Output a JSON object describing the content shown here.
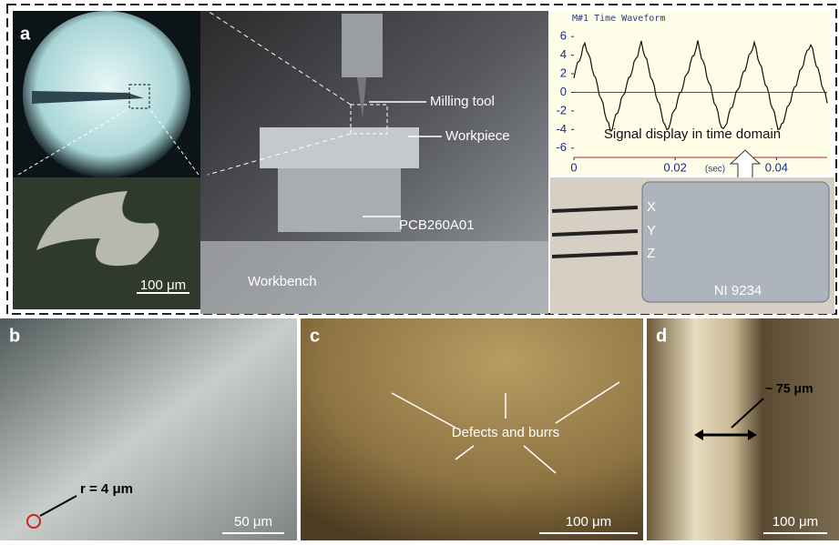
{
  "panels": {
    "a": {
      "label": "a",
      "milling_tool": "Milling tool",
      "workpiece": "Workpiece",
      "sensor": "PCB260A01",
      "workbench": "Workbench",
      "scale": "100 μm",
      "signal_caption": "Signal display in time domain",
      "channels": [
        "X",
        "Y",
        "Z"
      ],
      "daq": "NI 9234",
      "waveform": {
        "type": "line",
        "title": "M#1 Time Waveform",
        "x_label": "(sec)",
        "xlim": [
          0,
          0.05
        ],
        "ylim": [
          -7,
          7
        ],
        "xticks": [
          0,
          0.02,
          0.04
        ],
        "yticks": [
          6,
          4,
          2,
          0,
          -2,
          -4,
          -6
        ]
      }
    },
    "b": {
      "label": "b",
      "radius": "r = 4 μm",
      "scale": "50 μm"
    },
    "c": {
      "label": "c",
      "annotation": "Defects and burrs",
      "scale": "100 μm"
    },
    "d": {
      "label": "d",
      "width": "~ 75 μm",
      "scale": "100 μm"
    }
  }
}
